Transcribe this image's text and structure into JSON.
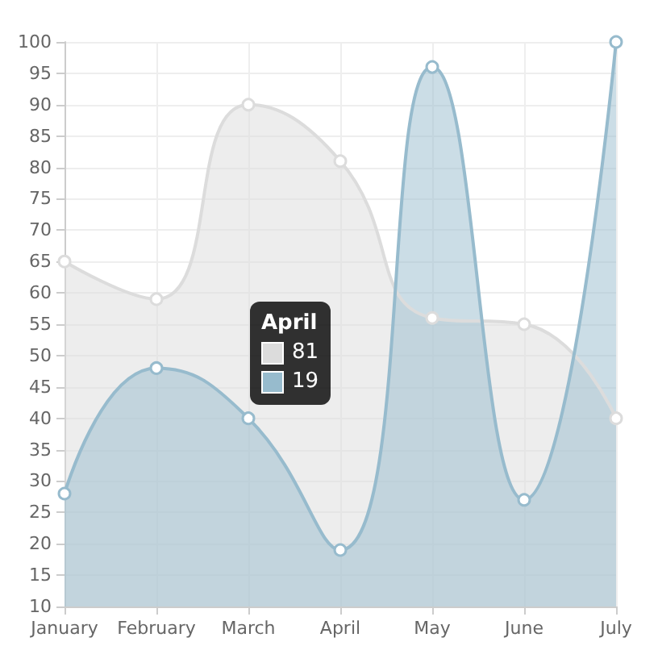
{
  "chart_data": {
    "type": "area",
    "categories": [
      "January",
      "February",
      "March",
      "April",
      "May",
      "June",
      "July"
    ],
    "series": [
      {
        "color": "#dcdcdc",
        "values": [
          65,
          59,
          90,
          81,
          56,
          55,
          40
        ]
      },
      {
        "color": "#97bbcd",
        "values": [
          28,
          48,
          40,
          19,
          96,
          27,
          100
        ]
      }
    ],
    "ylim": [
      10,
      100
    ],
    "yticks": [
      10,
      15,
      20,
      25,
      30,
      35,
      40,
      45,
      50,
      55,
      60,
      65,
      70,
      75,
      80,
      85,
      90,
      95,
      100
    ],
    "grid": true,
    "marker": "circle",
    "line_style": "solid",
    "annotations": [
      "April",
      "81",
      "19"
    ]
  }
}
